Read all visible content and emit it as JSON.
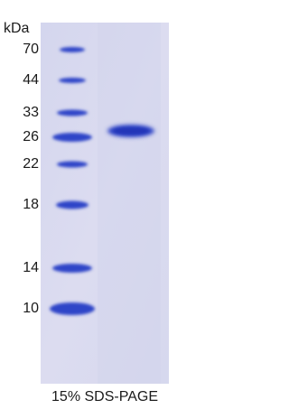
{
  "unit_label": "kDa",
  "markers": [
    70,
    44,
    33,
    26,
    22,
    18,
    14,
    10
  ],
  "caption": "15% SDS-PAGE"
}
